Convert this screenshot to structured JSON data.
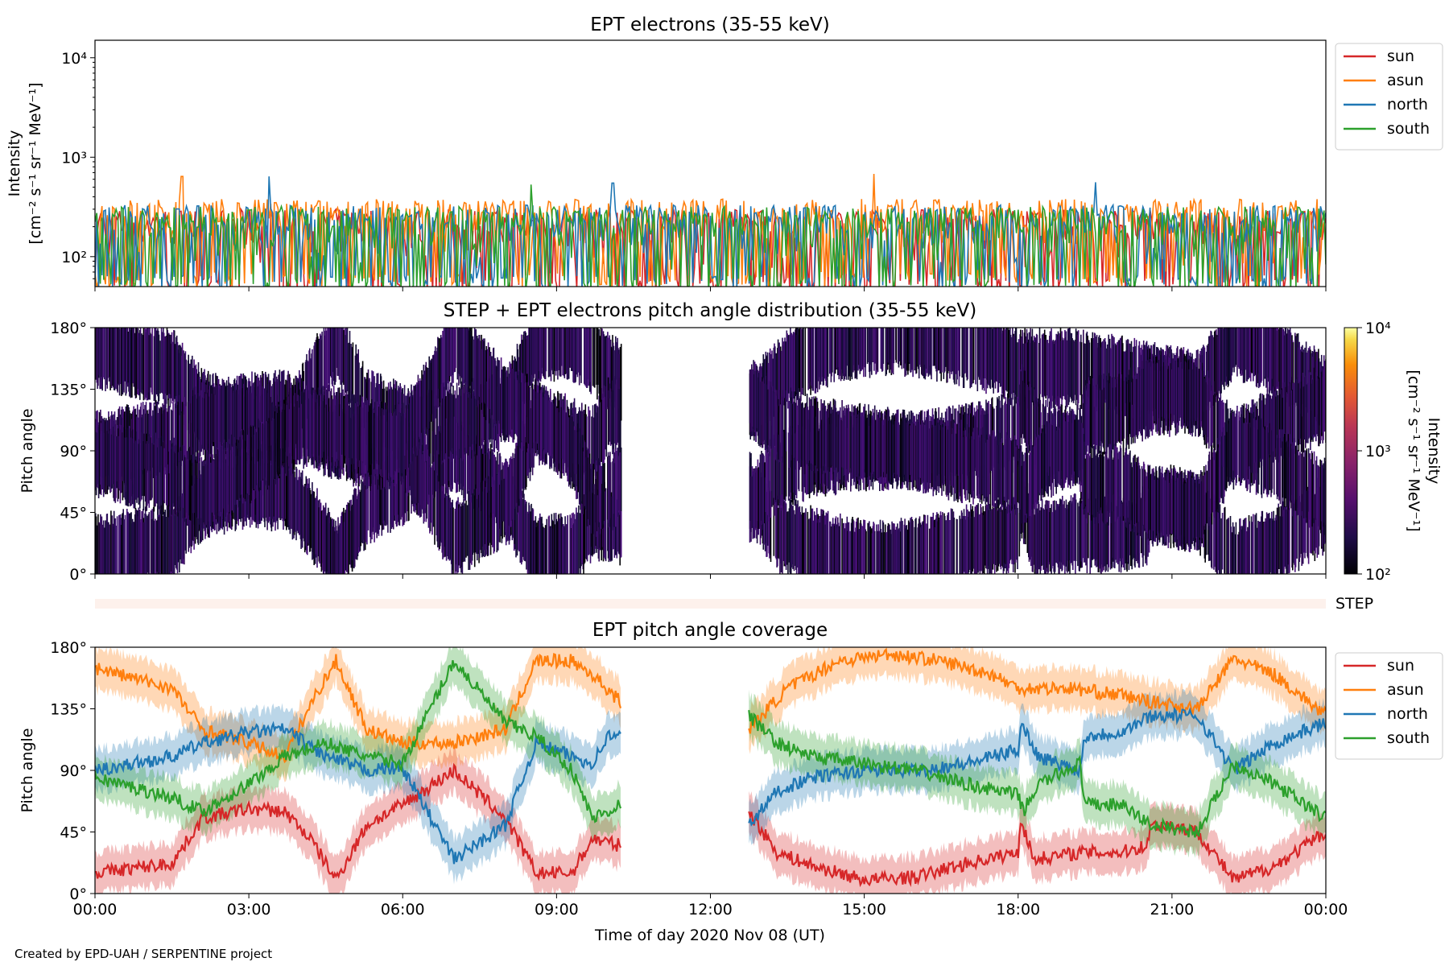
{
  "footer": "Created by EPD-UAH / SERPENTINE project",
  "chart_data": [
    {
      "type": "line",
      "title": "EPT electrons (35-55 keV)",
      "ylabel": [
        "Intensity",
        "[cm⁻² s⁻¹ sr⁻¹ MeV⁻¹]"
      ],
      "yscale": "log",
      "ylim": [
        50,
        15000
      ],
      "yticks": [
        {
          "value": 100,
          "label": "10²"
        },
        {
          "value": 1000,
          "label": "10³"
        },
        {
          "value": 10000,
          "label": "10⁴"
        }
      ],
      "x_range_hours": [
        0,
        24
      ],
      "legend_position": "right, outside top",
      "series": [
        {
          "name": "sun",
          "color": "#d62728",
          "base": 60,
          "top": 300,
          "peaks": []
        },
        {
          "name": "asun",
          "color": "#ff7f0e",
          "base": 70,
          "top": 380,
          "peaks": [
            [
              1.7,
              640
            ],
            [
              15.2,
              680
            ]
          ]
        },
        {
          "name": "north",
          "color": "#1f77b4",
          "base": 65,
          "top": 330,
          "peaks": [
            [
              3.4,
              640
            ],
            [
              10.1,
              550
            ],
            [
              19.5,
              560
            ]
          ]
        },
        {
          "name": "south",
          "color": "#2ca02c",
          "base": 60,
          "top": 320,
          "peaks": [
            [
              8.5,
              530
            ]
          ]
        }
      ]
    },
    {
      "type": "heatmap",
      "title": "STEP + EPT electrons pitch angle distribution (35-55 keV)",
      "ylabel": "Pitch angle",
      "ylim": [
        0,
        180
      ],
      "yticks": [
        "0°",
        "45°",
        "90°",
        "135°",
        "180°"
      ],
      "colorbar": {
        "label": [
          "Intensity",
          "[cm⁻² s⁻¹ sr⁻¹ MeV⁻¹]"
        ],
        "scale": "log",
        "range": [
          100,
          10000
        ],
        "ticks": [
          "10²",
          "10³",
          "10⁴"
        ],
        "colormap": "inferno"
      },
      "data_gap_hours": [
        10.25,
        12.75
      ]
    },
    {
      "type": "bar",
      "label": "STEP",
      "color": "#fdf1ec",
      "x_range_hours": [
        0,
        24
      ]
    },
    {
      "type": "area",
      "title": "EPT pitch angle coverage",
      "ylabel": "Pitch angle",
      "xlabel": "Time of day 2020 Nov 08 (UT)",
      "ylim": [
        0,
        180
      ],
      "yticks": [
        "0°",
        "45°",
        "90°",
        "135°",
        "180°"
      ],
      "xticks": [
        "00:00",
        "03:00",
        "06:00",
        "09:00",
        "12:00",
        "15:00",
        "18:00",
        "21:00",
        "00:00"
      ],
      "x_range_hours": [
        0,
        24
      ],
      "data_gap_hours": [
        10.25,
        12.75
      ],
      "legend_position": "right, outside top",
      "series": [
        {
          "name": "sun",
          "color": "#d62728",
          "points": [
            [
              0,
              15
            ],
            [
              1.5,
              22
            ],
            [
              2.1,
              55
            ],
            [
              3,
              62
            ],
            [
              3.7,
              60
            ],
            [
              4.2,
              40
            ],
            [
              4.7,
              10
            ],
            [
              5.3,
              50
            ],
            [
              6,
              65
            ],
            [
              7,
              90
            ],
            [
              8,
              55
            ],
            [
              8.6,
              15
            ],
            [
              9.3,
              15
            ],
            [
              9.7,
              40
            ],
            [
              10.25,
              35
            ],
            [
              12.75,
              60
            ],
            [
              13.3,
              30
            ],
            [
              14,
              20
            ],
            [
              15,
              10
            ],
            [
              16,
              12
            ],
            [
              17,
              22
            ],
            [
              18,
              30
            ],
            [
              18.05,
              55
            ],
            [
              18.3,
              25
            ],
            [
              19.2,
              30
            ],
            [
              20,
              30
            ],
            [
              20.5,
              35
            ],
            [
              20.6,
              50
            ],
            [
              21,
              50
            ],
            [
              21.5,
              45
            ],
            [
              22.2,
              10
            ],
            [
              23,
              20
            ],
            [
              24,
              45
            ]
          ]
        },
        {
          "name": "asun",
          "color": "#ff7f0e",
          "points": [
            [
              0,
              165
            ],
            [
              1.5,
              150
            ],
            [
              2.1,
              120
            ],
            [
              3,
              110
            ],
            [
              3.7,
              100
            ],
            [
              4.3,
              145
            ],
            [
              4.7,
              170
            ],
            [
              5.3,
              120
            ],
            [
              6,
              110
            ],
            [
              7,
              110
            ],
            [
              8,
              120
            ],
            [
              8.6,
              170
            ],
            [
              9.3,
              170
            ],
            [
              9.7,
              160
            ],
            [
              10.25,
              140
            ],
            [
              12.75,
              120
            ],
            [
              13.5,
              150
            ],
            [
              14.5,
              170
            ],
            [
              15.5,
              175
            ],
            [
              16.5,
              170
            ],
            [
              17.5,
              160
            ],
            [
              18,
              150
            ],
            [
              19,
              150
            ],
            [
              20,
              145
            ],
            [
              20.6,
              140
            ],
            [
              21.5,
              135
            ],
            [
              22.2,
              172
            ],
            [
              23,
              160
            ],
            [
              24,
              130
            ]
          ]
        },
        {
          "name": "north",
          "color": "#1f77b4",
          "points": [
            [
              0,
              90
            ],
            [
              1.5,
              100
            ],
            [
              2.1,
              110
            ],
            [
              3,
              118
            ],
            [
              3.7,
              120
            ],
            [
              4.5,
              100
            ],
            [
              5.3,
              90
            ],
            [
              6,
              92
            ],
            [
              7,
              25
            ],
            [
              8,
              50
            ],
            [
              8.6,
              110
            ],
            [
              9.3,
              100
            ],
            [
              9.7,
              95
            ],
            [
              10,
              115
            ],
            [
              10.25,
              115
            ],
            [
              12.75,
              50
            ],
            [
              13.3,
              75
            ],
            [
              14,
              85
            ],
            [
              15,
              90
            ],
            [
              16,
              90
            ],
            [
              17,
              95
            ],
            [
              18,
              105
            ],
            [
              18.05,
              125
            ],
            [
              18.4,
              100
            ],
            [
              19.2,
              90
            ],
            [
              19.3,
              115
            ],
            [
              20,
              118
            ],
            [
              20.6,
              130
            ],
            [
              21.5,
              130
            ],
            [
              22.2,
              90
            ],
            [
              23,
              110
            ],
            [
              24,
              125
            ]
          ]
        },
        {
          "name": "south",
          "color": "#2ca02c",
          "points": [
            [
              0,
              85
            ],
            [
              1.5,
              70
            ],
            [
              2.1,
              60
            ],
            [
              3,
              80
            ],
            [
              3.7,
              100
            ],
            [
              4.5,
              110
            ],
            [
              5.3,
              100
            ],
            [
              6,
              95
            ],
            [
              7,
              170
            ],
            [
              8,
              125
            ],
            [
              8.6,
              115
            ],
            [
              9.3,
              90
            ],
            [
              9.7,
              55
            ],
            [
              10.25,
              65
            ],
            [
              12.75,
              130
            ],
            [
              13.3,
              110
            ],
            [
              14,
              100
            ],
            [
              15,
              95
            ],
            [
              16,
              90
            ],
            [
              17,
              80
            ],
            [
              18,
              72
            ],
            [
              18.1,
              60
            ],
            [
              18.4,
              80
            ],
            [
              19.2,
              95
            ],
            [
              19.3,
              65
            ],
            [
              20,
              65
            ],
            [
              20.6,
              50
            ],
            [
              21.5,
              45
            ],
            [
              22.2,
              95
            ],
            [
              23,
              80
            ],
            [
              24,
              55
            ]
          ]
        }
      ]
    }
  ]
}
